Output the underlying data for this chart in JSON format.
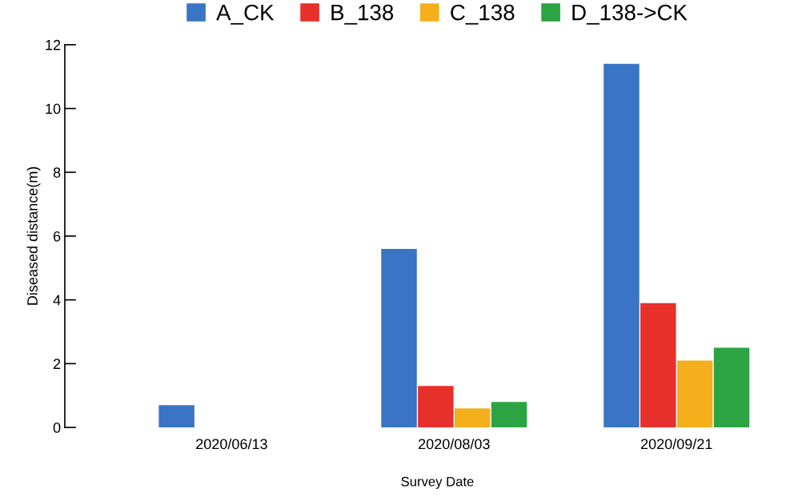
{
  "chart_data": {
    "type": "bar",
    "xlabel": "Survey Date",
    "ylabel": "Diseased distance(m)",
    "categories": [
      "2020/06/13",
      "2020/08/03",
      "2020/09/21"
    ],
    "series": [
      {
        "name": "A_CK",
        "color": "#3a74c4",
        "values": [
          0.7,
          5.6,
          11.4
        ]
      },
      {
        "name": "B_138",
        "color": "#e8302a",
        "values": [
          0,
          1.3,
          3.9
        ]
      },
      {
        "name": "C_138",
        "color": "#f4b01c",
        "values": [
          0,
          0.6,
          2.1
        ]
      },
      {
        "name": "D_138->CK",
        "color": "#2da444",
        "values": [
          0,
          0.8,
          2.5
        ]
      }
    ],
    "ylim": [
      0,
      12
    ],
    "yticks": [
      0,
      2,
      4,
      6,
      8,
      10,
      12
    ],
    "grid": false,
    "legend": "top"
  }
}
